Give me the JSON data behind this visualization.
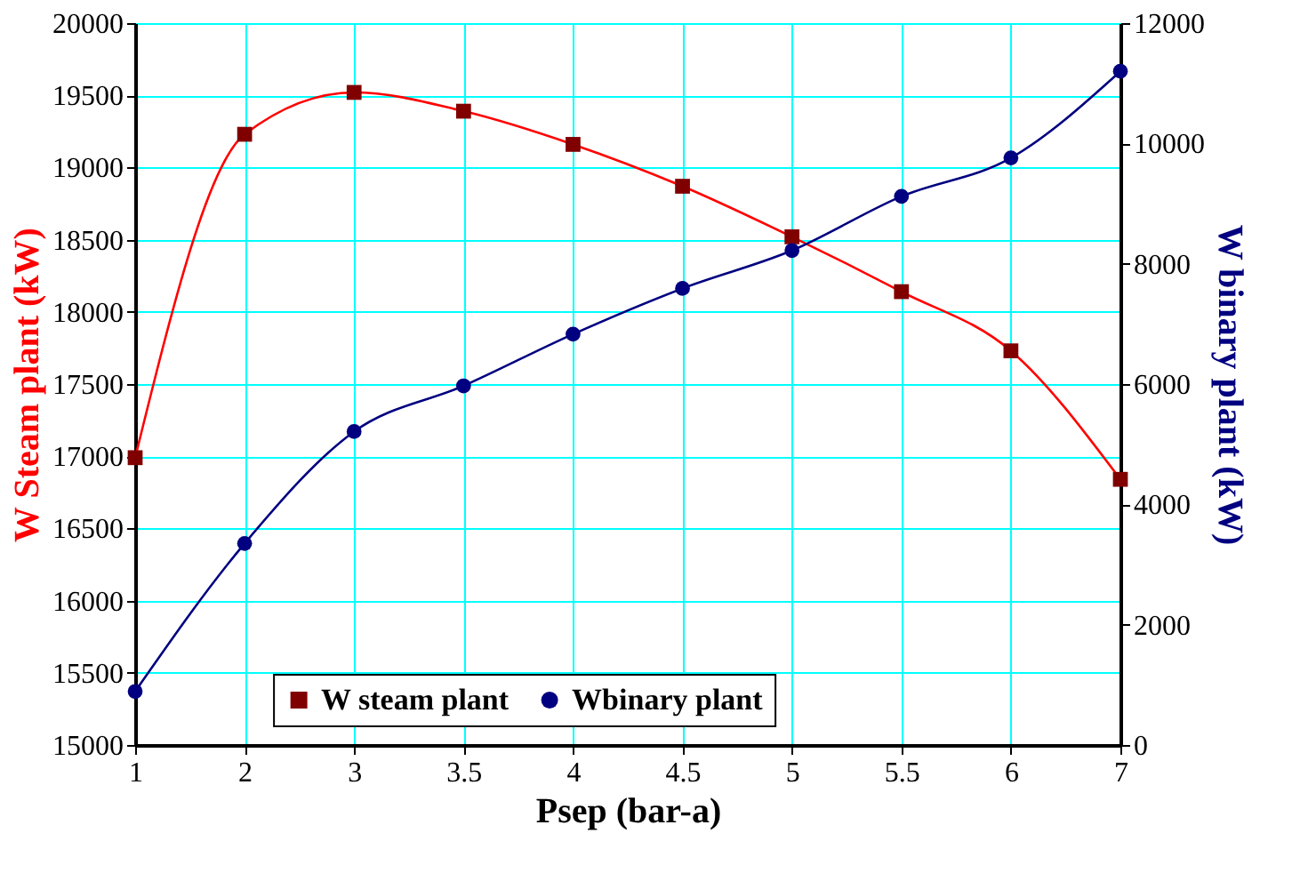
{
  "chart_data": {
    "type": "line",
    "xlabel": "Psep (bar-a)",
    "ylabel": "W Steam plant (kW)",
    "y2label": "W binary plant (kW)",
    "categories": [
      "1",
      "2",
      "3",
      "3.5",
      "4",
      "4.5",
      "5",
      "5.5",
      "6",
      "7"
    ],
    "series": [
      {
        "name": "W steam plant",
        "color": "#800000",
        "marker": "square",
        "values": [
          16990,
          19230,
          19520,
          19390,
          19160,
          18870,
          18520,
          18140,
          17730,
          16840
        ]
      },
      {
        "name": "Wbinary plant",
        "color": "#000080",
        "marker": "circle",
        "axis": "y2",
        "values": [
          890,
          3350,
          5210,
          5970,
          6830,
          7590,
          8220,
          9120,
          9760,
          11200
        ]
      }
    ],
    "ylim": [
      15000,
      20000
    ],
    "yticks": [
      15000,
      15500,
      16000,
      16500,
      17000,
      17500,
      18000,
      18500,
      19000,
      19500,
      20000
    ],
    "y2lim": [
      0,
      12000
    ],
    "y2ticks": [
      0,
      2000,
      4000,
      6000,
      8000,
      10000,
      12000
    ],
    "grid": true,
    "legend": "bottom",
    "line_style": "solid"
  }
}
